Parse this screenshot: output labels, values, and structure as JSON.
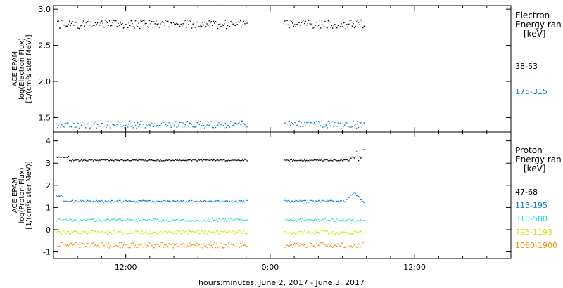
{
  "xlabel": "hours:minutes, June  2, 2017 - June  3, 2017",
  "x_ticks": [
    "12:00",
    "0:00",
    "12:00"
  ],
  "x_tick_hours": [
    12,
    24,
    36
  ],
  "x_range_hours": [
    6,
    44
  ],
  "data_gaps_hours": [
    [
      22.1,
      25.1
    ]
  ],
  "chart_data": [
    {
      "type": "scatter",
      "panel": "electron",
      "ylabel": [
        "ACE EPAM",
        "log(Electron Flux)",
        "[1/(cm²s ster MeV)]"
      ],
      "ylim": [
        1.3,
        3.05
      ],
      "yticks": [
        1.5,
        2.0,
        2.5,
        3.0
      ],
      "ytick_labels": [
        "1.5",
        "2.0",
        "2.5",
        "3.0"
      ],
      "legend_title": [
        "Electron",
        "Energy ran",
        "[keV]"
      ],
      "series": [
        {
          "name": "38-53",
          "color": "#000000",
          "x_start": 6.2,
          "x_end": 31.8,
          "level": 2.8,
          "spread": 0.06
        },
        {
          "name": "175-315",
          "color": "#0a78c8",
          "x_start": 6.2,
          "x_end": 31.8,
          "level": 1.41,
          "spread": 0.05
        }
      ]
    },
    {
      "type": "scatter",
      "panel": "proton",
      "ylabel": [
        "ACE EPAM",
        "log(Proton Flux)",
        "[1/(cm²s ster MeV)]"
      ],
      "ylim": [
        -1.3,
        4.4
      ],
      "yticks": [
        -1,
        0,
        1,
        2,
        3,
        4
      ],
      "ytick_labels": [
        "-1",
        "0",
        "1",
        "2",
        "3",
        "4"
      ],
      "legend_title": [
        "Proton",
        "Energy ran",
        "[keV]"
      ],
      "series": [
        {
          "name": "47-68",
          "color": "#000000",
          "x_start": 6.2,
          "x_end": 31.8,
          "level": 3.15,
          "spread": 0.03
        },
        {
          "name": "115-195",
          "color": "#0a78c8",
          "x_start": 6.2,
          "x_end": 31.8,
          "level": 1.3,
          "spread": 0.04
        },
        {
          "name": "310-580",
          "color": "#22d8d8",
          "x_start": 6.2,
          "x_end": 31.8,
          "level": 0.45,
          "spread": 0.06
        },
        {
          "name": "795-1193",
          "color": "#d6e000",
          "x_start": 6.2,
          "x_end": 31.8,
          "level": -0.1,
          "spread": 0.08
        },
        {
          "name": "1060-1900",
          "color": "#ee8a00",
          "x_start": 6.2,
          "x_end": 31.8,
          "level": -0.68,
          "spread": 0.12
        }
      ]
    }
  ]
}
